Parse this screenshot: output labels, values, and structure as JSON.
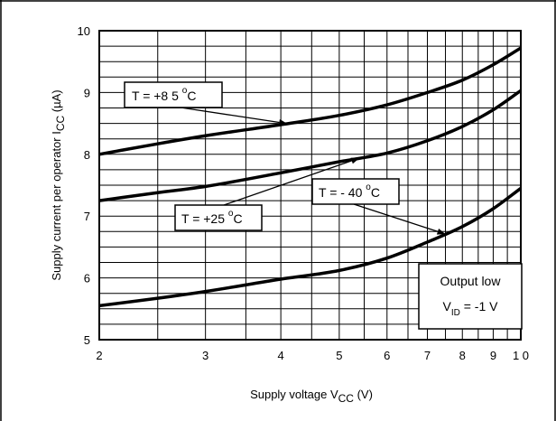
{
  "chart_data": {
    "type": "line",
    "title": "",
    "xlabel_main": "Supply voltage V",
    "xlabel_sub": "CC",
    "xlabel_unit": " (V)",
    "ylabel_main": "Supply current per operator I",
    "ylabel_sub": "CC",
    "ylabel_unit": " (µA)",
    "x_scale": "log",
    "xlim": [
      2,
      10
    ],
    "ylim": [
      5,
      10
    ],
    "x_tick_values": [
      2,
      3,
      4,
      5,
      6,
      7,
      8,
      9,
      10
    ],
    "x_tick_labels": [
      "2",
      "3",
      "4",
      "5",
      "6",
      "7",
      "8",
      "9",
      "1 0"
    ],
    "y_tick_values": [
      5,
      6,
      7,
      8,
      9,
      10
    ],
    "y_tick_labels": [
      "5",
      "6",
      "7",
      "8",
      "9",
      "10"
    ],
    "grid": true,
    "series": [
      {
        "name": "T = +85 °C",
        "x": [
          2,
          2.5,
          3,
          4,
          5,
          6,
          7,
          8,
          9,
          10
        ],
        "y": [
          8.0,
          8.17,
          8.3,
          8.48,
          8.63,
          8.8,
          9.0,
          9.2,
          9.45,
          9.72
        ]
      },
      {
        "name": "T = +25 °C",
        "x": [
          2,
          2.5,
          3,
          4,
          5,
          6,
          7,
          8,
          9,
          10
        ],
        "y": [
          7.25,
          7.38,
          7.48,
          7.7,
          7.88,
          8.02,
          8.22,
          8.45,
          8.72,
          9.03
        ]
      },
      {
        "name": "T = - 40 °C",
        "x": [
          2,
          2.5,
          3,
          4,
          5,
          6,
          7,
          8,
          9,
          10
        ],
        "y": [
          5.55,
          5.67,
          5.78,
          5.98,
          6.12,
          6.32,
          6.58,
          6.83,
          7.12,
          7.45
        ]
      }
    ],
    "annotations": [
      {
        "label": "T = +85 °C",
        "main": "T =  +8 5 ",
        "deg": "o",
        "unit": "C",
        "series": 0
      },
      {
        "label": "T = +25 °C",
        "main": "T = +25 ",
        "deg": "o",
        "unit": "C",
        "series": 1
      },
      {
        "label": "T = - 40 °C",
        "main": "T = - 40 ",
        "deg": "o",
        "unit": "C",
        "series": 2
      }
    ],
    "condition_box": {
      "line1": "Output low",
      "line2_main": "V",
      "line2_sub": "ID",
      "line2_rest": " = -1 V"
    }
  }
}
